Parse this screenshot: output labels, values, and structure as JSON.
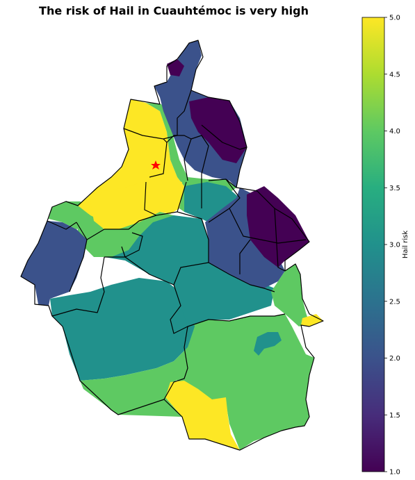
{
  "title": "The risk of Hail in Cuauhtémoc is very high",
  "colorbar": {
    "label": "Hail risk",
    "min": 1.0,
    "max": 5.0,
    "ticks": [
      "1.0",
      "1.5",
      "2.0",
      "2.5",
      "3.0",
      "3.5",
      "4.0",
      "4.5",
      "5.0"
    ]
  },
  "colors": {
    "risk_5": "#fde725",
    "risk_4": "#5ec962",
    "risk_3": "#21918c",
    "risk_2": "#3b528b",
    "risk_1": "#440154",
    "marker": "#ff0000"
  },
  "marker": {
    "name": "Cuauhtémoc",
    "shape": "star"
  }
}
